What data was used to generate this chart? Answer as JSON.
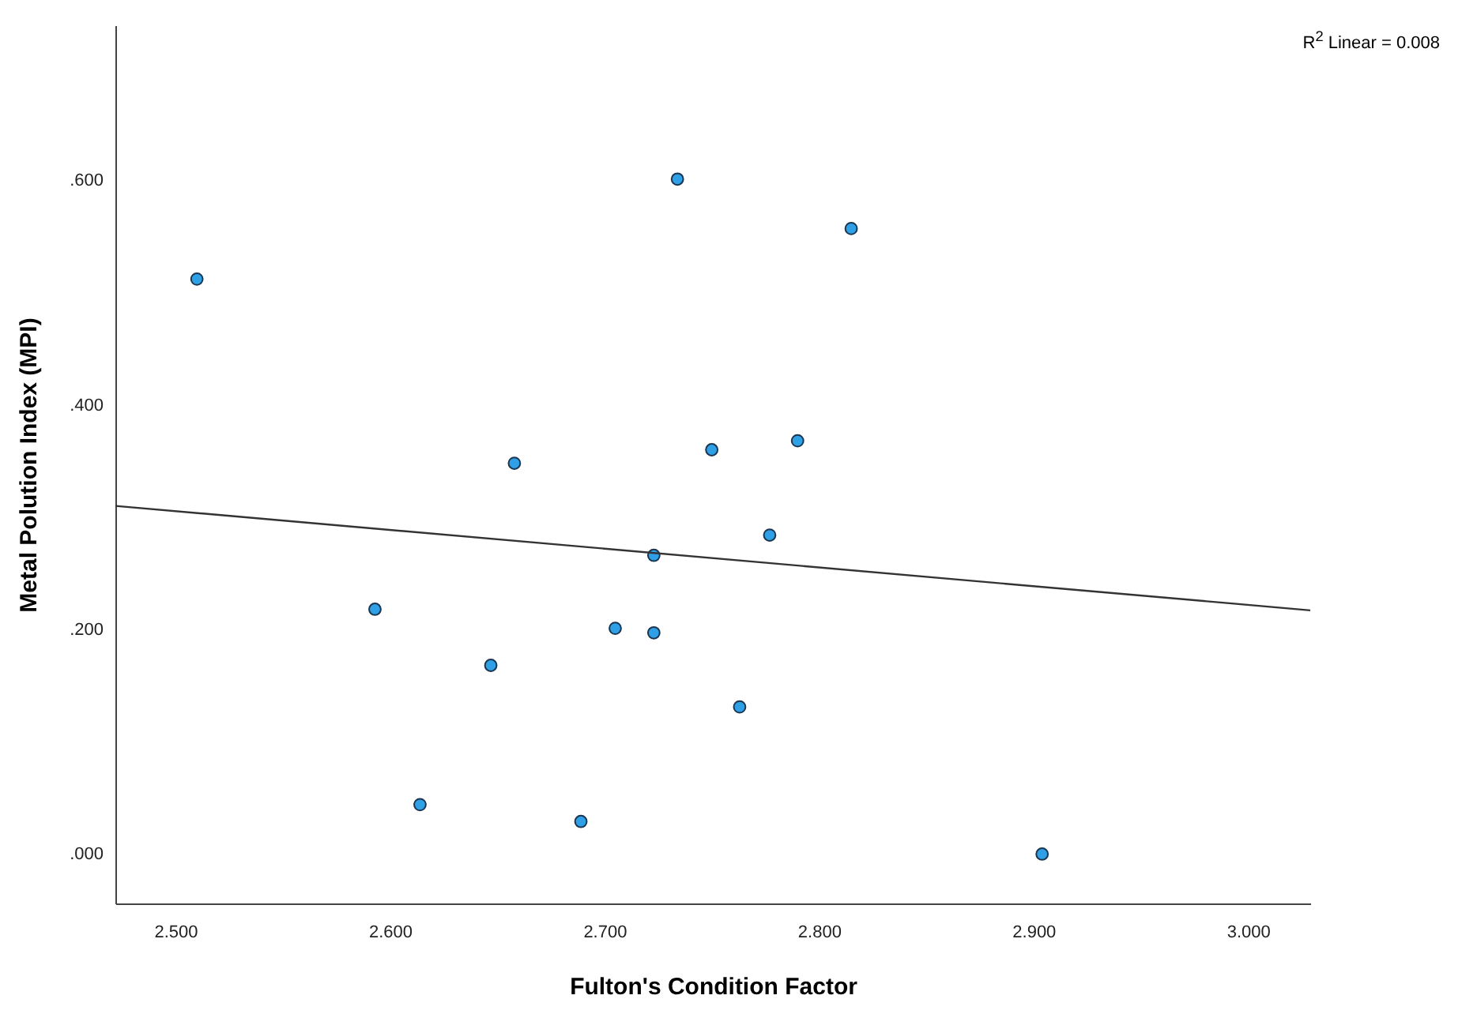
{
  "chart_data": {
    "type": "scatter",
    "xlabel": "Fulton's Condition Factor",
    "ylabel": "Metal Polution Index (MPI)",
    "annotations": [
      "R$^{2}$ Linear = 0.008"
    ],
    "xlim": [
      2.472,
      3.029
    ],
    "ylim": [
      -0.044,
      0.738
    ],
    "xticks": [
      {
        "value": 2.5,
        "label": "2.500"
      },
      {
        "value": 2.6,
        "label": "2.600"
      },
      {
        "value": 2.7,
        "label": "2.700"
      },
      {
        "value": 2.8,
        "label": "2.800"
      },
      {
        "value": 2.9,
        "label": "2.900"
      },
      {
        "value": 3.0,
        "label": "3.000"
      }
    ],
    "yticks": [
      {
        "value": 0,
        "label": ".000"
      },
      {
        "value": 0.2,
        "label": ".200"
      },
      {
        "value": 0.4,
        "label": ".400"
      },
      {
        "value": 0.6,
        "label": ".600"
      }
    ],
    "grid": false,
    "series": [
      {
        "marker": "circle",
        "color": "#2f9fe6",
        "x": [
          2.51,
          2.593,
          2.614,
          2.647,
          2.658,
          2.689,
          2.705,
          2.723,
          2.723,
          2.734,
          2.75,
          2.763,
          2.777,
          2.79,
          2.815,
          2.904
        ],
        "values": [
          0.512,
          0.218,
          0.044,
          0.168,
          0.348,
          0.029,
          0.201,
          0.197,
          0.266,
          0.601,
          0.36,
          0.131,
          0.284,
          0.368,
          0.557,
          0.0
        ]
      },
      {
        "type": "line",
        "color": "#333333",
        "x": [
          2.472,
          3.029
        ],
        "values": [
          0.31,
          0.217
        ]
      }
    ]
  }
}
